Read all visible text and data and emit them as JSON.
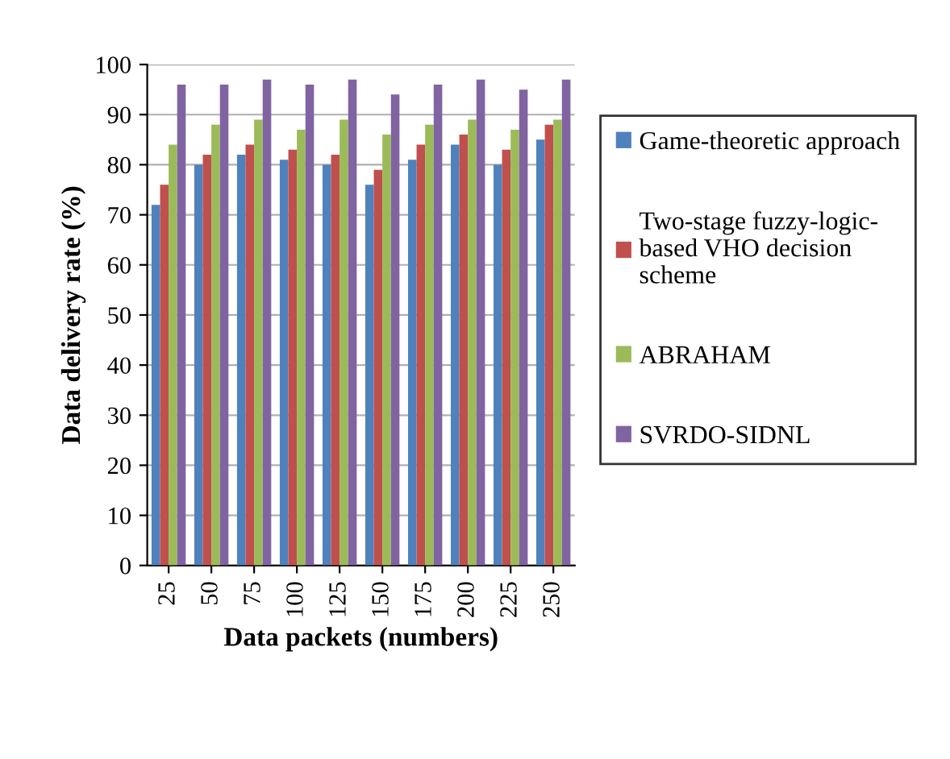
{
  "chart_data": {
    "type": "bar",
    "xlabel": "Data packets (numbers)",
    "ylabel": "Data delivery rate (%)",
    "categories": [
      "25",
      "50",
      "75",
      "100",
      "125",
      "150",
      "175",
      "200",
      "225",
      "250"
    ],
    "series": [
      {
        "name": "Game-theoretic approach",
        "color": "#4f81bd",
        "values": [
          72,
          80,
          82,
          81,
          80,
          76,
          81,
          84,
          80,
          85
        ]
      },
      {
        "name": "Two-stage fuzzy-logic-\nbased VHO decision\nscheme",
        "color": "#c0504d",
        "values": [
          76,
          82,
          84,
          83,
          82,
          79,
          84,
          86,
          83,
          88
        ]
      },
      {
        "name": "ABRAHAM",
        "color": "#9bbb59",
        "values": [
          84,
          88,
          89,
          87,
          89,
          86,
          88,
          89,
          87,
          89
        ]
      },
      {
        "name": "SVRDO-SIDNL",
        "color": "#8064a2",
        "values": [
          96,
          96,
          97,
          96,
          97,
          94,
          96,
          97,
          95,
          97
        ]
      }
    ],
    "ylim": [
      0,
      100
    ],
    "yticks": [
      0,
      10,
      20,
      30,
      40,
      50,
      60,
      70,
      80,
      90,
      100
    ],
    "grid": "y",
    "legend": "right"
  }
}
